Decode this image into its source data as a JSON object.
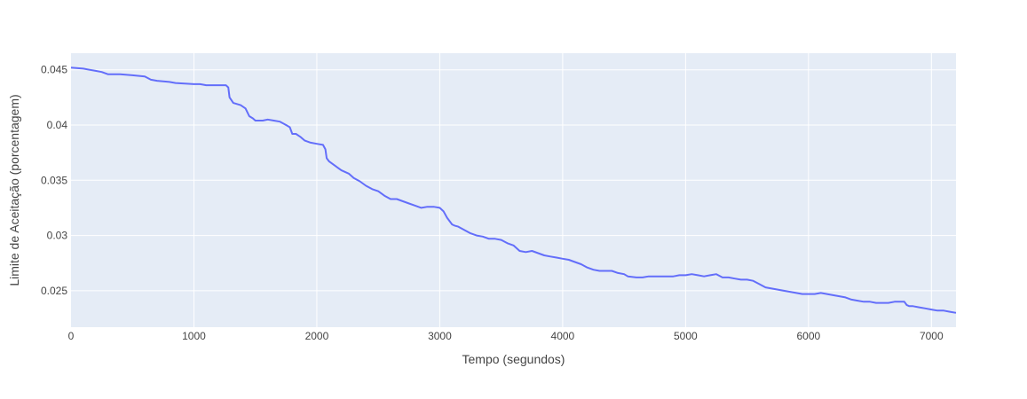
{
  "chart_data": {
    "type": "line",
    "title": "",
    "xlabel": "Tempo (segundos)",
    "ylabel": "Limite de Aceitação (porcentagem)",
    "xlim": [
      0,
      7200
    ],
    "ylim": [
      0.0217,
      0.0465
    ],
    "grid": true,
    "legend": "none",
    "plot_bg": "#e5ecf6",
    "grid_color": "#ffffff",
    "line_color": "#636efa",
    "x_ticks": [
      0,
      1000,
      2000,
      3000,
      4000,
      5000,
      6000,
      7000
    ],
    "x_tick_labels": [
      "0",
      "1000",
      "2000",
      "3000",
      "4000",
      "5000",
      "6000",
      "7000"
    ],
    "y_ticks": [
      0.025,
      0.03,
      0.035,
      0.04,
      0.045
    ],
    "y_tick_labels": [
      "0.025",
      "0.03",
      "0.035",
      "0.04",
      "0.045"
    ],
    "series": [
      {
        "x": [
          0,
          100,
          150,
          200,
          250,
          300,
          400,
          500,
          600,
          650,
          700,
          800,
          850,
          1000,
          1050,
          1100,
          1150,
          1200,
          1260,
          1280,
          1290,
          1320,
          1380,
          1420,
          1450,
          1480,
          1500,
          1560,
          1600,
          1650,
          1700,
          1750,
          1780,
          1800,
          1830,
          1870,
          1900,
          1950,
          2000,
          2050,
          2070,
          2080,
          2100,
          2150,
          2200,
          2260,
          2300,
          2350,
          2400,
          2450,
          2500,
          2550,
          2600,
          2650,
          2700,
          2750,
          2800,
          2850,
          2900,
          2950,
          3000,
          3030,
          3060,
          3080,
          3100,
          3120,
          3150,
          3200,
          3250,
          3300,
          3350,
          3400,
          3450,
          3500,
          3550,
          3600,
          3650,
          3700,
          3750,
          3800,
          3850,
          3900,
          3950,
          4000,
          4050,
          4100,
          4150,
          4200,
          4250,
          4300,
          4350,
          4400,
          4450,
          4500,
          4530,
          4600,
          4650,
          4700,
          4750,
          4800,
          4850,
          4900,
          4950,
          5000,
          5050,
          5100,
          5150,
          5200,
          5250,
          5300,
          5350,
          5400,
          5450,
          5500,
          5550,
          5600,
          5650,
          5700,
          5750,
          5800,
          5850,
          5900,
          5950,
          6000,
          6050,
          6100,
          6150,
          6200,
          6250,
          6300,
          6350,
          6400,
          6450,
          6500,
          6550,
          6600,
          6650,
          6700,
          6780,
          6800,
          6820,
          6850,
          6900,
          6950,
          7000,
          7050,
          7100,
          7150,
          7200
        ],
        "y": [
          0.0452,
          0.0451,
          0.045,
          0.0449,
          0.0448,
          0.0446,
          0.0446,
          0.0445,
          0.0444,
          0.0441,
          0.044,
          0.0439,
          0.0438,
          0.0437,
          0.0437,
          0.0436,
          0.0436,
          0.0436,
          0.0436,
          0.0434,
          0.0425,
          0.042,
          0.0418,
          0.0415,
          0.0408,
          0.0406,
          0.0404,
          0.0404,
          0.0405,
          0.0404,
          0.0403,
          0.04,
          0.0398,
          0.0392,
          0.0392,
          0.0389,
          0.0386,
          0.0384,
          0.0383,
          0.0382,
          0.0378,
          0.037,
          0.0367,
          0.0363,
          0.0359,
          0.0356,
          0.0352,
          0.0349,
          0.0345,
          0.0342,
          0.034,
          0.0336,
          0.0333,
          0.0333,
          0.0331,
          0.0329,
          0.0327,
          0.0325,
          0.0326,
          0.0326,
          0.0325,
          0.0322,
          0.0316,
          0.0313,
          0.031,
          0.0309,
          0.0308,
          0.0305,
          0.0302,
          0.03,
          0.0299,
          0.0297,
          0.0297,
          0.0296,
          0.0293,
          0.0291,
          0.0286,
          0.0285,
          0.0286,
          0.0284,
          0.0282,
          0.0281,
          0.028,
          0.0279,
          0.0278,
          0.0276,
          0.0274,
          0.0271,
          0.0269,
          0.0268,
          0.0268,
          0.0268,
          0.0266,
          0.0265,
          0.0263,
          0.0262,
          0.0262,
          0.0263,
          0.0263,
          0.0263,
          0.0263,
          0.0263,
          0.0264,
          0.0264,
          0.0265,
          0.0264,
          0.0263,
          0.0264,
          0.0265,
          0.0262,
          0.0262,
          0.0261,
          0.026,
          0.026,
          0.0259,
          0.0256,
          0.0253,
          0.0252,
          0.0251,
          0.025,
          0.0249,
          0.0248,
          0.0247,
          0.0247,
          0.0247,
          0.0248,
          0.0247,
          0.0246,
          0.0245,
          0.0244,
          0.0242,
          0.0241,
          0.024,
          0.024,
          0.0239,
          0.0239,
          0.0239,
          0.024,
          0.024,
          0.0237,
          0.0236,
          0.0236,
          0.0235,
          0.0234,
          0.0233,
          0.0232,
          0.0232,
          0.0231,
          0.023
        ]
      }
    ]
  }
}
